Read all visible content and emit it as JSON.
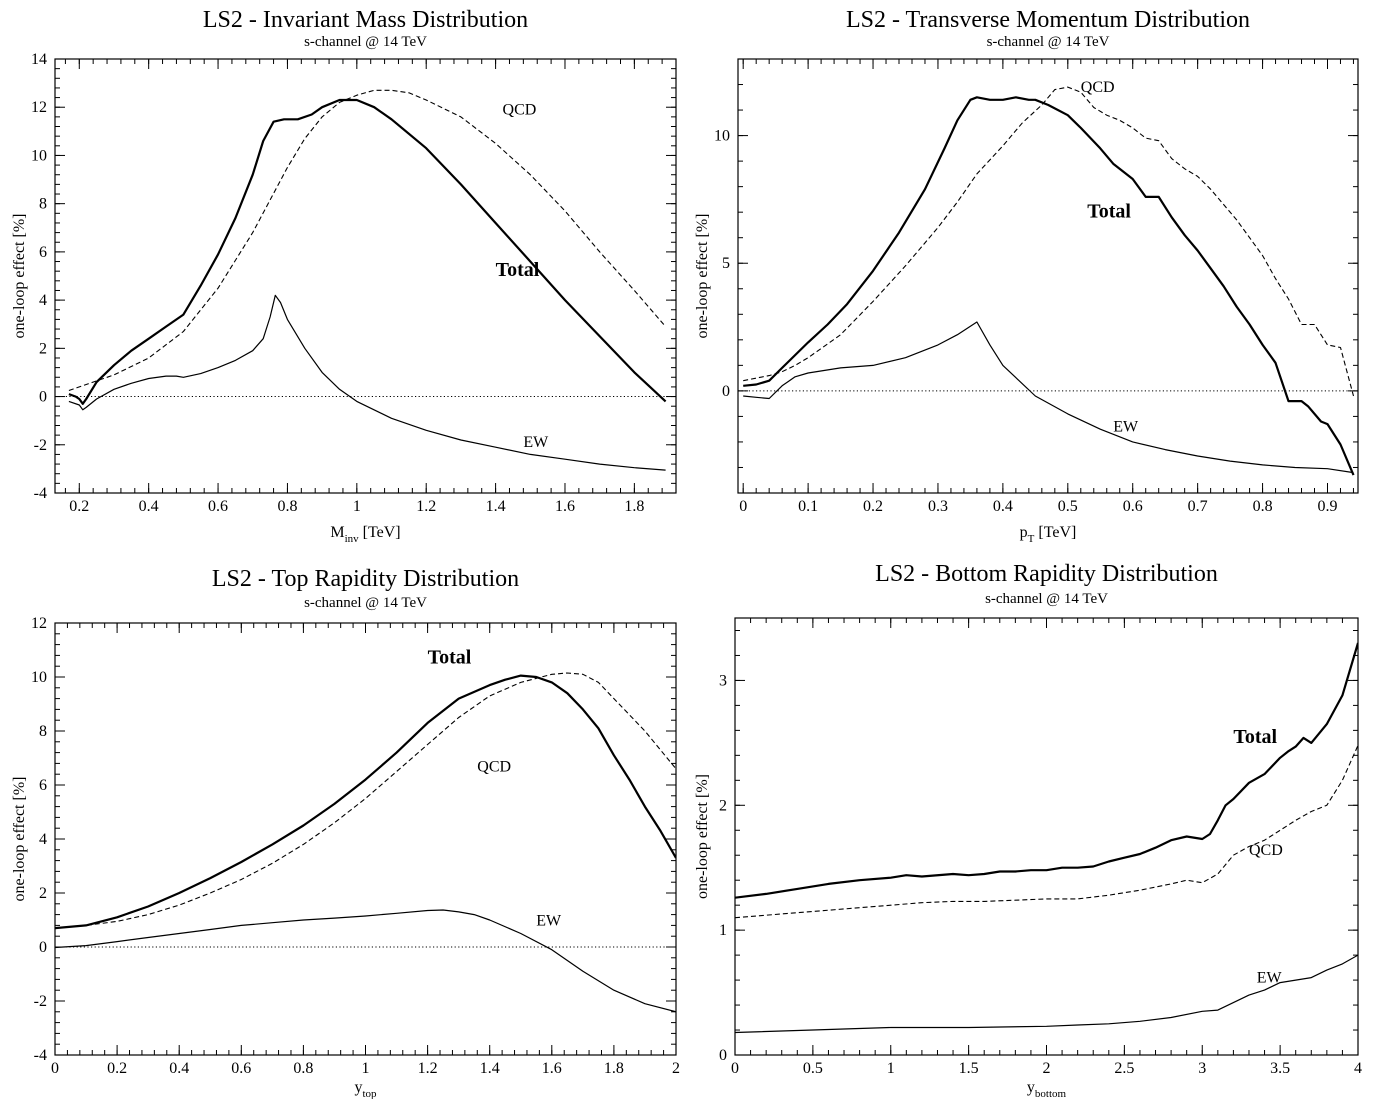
{
  "chart_data": [
    {
      "type": "line",
      "title": "LS2 - Invariant Mass Distribution",
      "subtitle": "s-channel @ 14 TeV",
      "xlabel": "M",
      "xlabel_sub": "inv",
      "xlabel_unit": "[TeV]",
      "ylabel": "one-loop effect [%]",
      "xlim": [
        0.13,
        1.92
      ],
      "ylim": [
        -4,
        14
      ],
      "xticks": [
        0.2,
        0.4,
        0.6,
        0.8,
        1,
        1.2,
        1.4,
        1.6,
        1.8
      ],
      "yticks": [
        -4,
        -2,
        0,
        2,
        4,
        6,
        8,
        10,
        12,
        14
      ],
      "grid": false,
      "zero_line": true,
      "series": [
        {
          "name": "Total",
          "style": "thick",
          "x": [
            0.17,
            0.19,
            0.2,
            0.21,
            0.22,
            0.25,
            0.3,
            0.35,
            0.4,
            0.45,
            0.5,
            0.55,
            0.6,
            0.65,
            0.7,
            0.73,
            0.76,
            0.79,
            0.8,
            0.83,
            0.87,
            0.9,
            0.95,
            1.0,
            1.05,
            1.1,
            1.2,
            1.3,
            1.4,
            1.5,
            1.6,
            1.7,
            1.8,
            1.89
          ],
          "y": [
            0.1,
            0.0,
            -0.1,
            -0.3,
            -0.1,
            0.6,
            1.3,
            1.9,
            2.4,
            2.9,
            3.4,
            4.6,
            5.9,
            7.4,
            9.2,
            10.6,
            11.4,
            11.5,
            11.5,
            11.5,
            11.7,
            12.0,
            12.3,
            12.3,
            12.0,
            11.5,
            10.3,
            8.8,
            7.2,
            5.6,
            4.0,
            2.5,
            1.0,
            -0.2
          ]
        },
        {
          "name": "QCD",
          "style": "dashed",
          "x": [
            0.17,
            0.2,
            0.22,
            0.3,
            0.4,
            0.5,
            0.6,
            0.7,
            0.8,
            0.85,
            0.9,
            0.95,
            1.0,
            1.05,
            1.1,
            1.15,
            1.2,
            1.3,
            1.4,
            1.5,
            1.6,
            1.7,
            1.8,
            1.89
          ],
          "y": [
            0.25,
            0.4,
            0.5,
            0.9,
            1.6,
            2.7,
            4.5,
            6.8,
            9.5,
            10.7,
            11.6,
            12.2,
            12.5,
            12.7,
            12.7,
            12.6,
            12.3,
            11.6,
            10.5,
            9.2,
            7.7,
            6.0,
            4.4,
            2.9
          ]
        },
        {
          "name": "EW",
          "style": "thin",
          "x": [
            0.17,
            0.2,
            0.21,
            0.22,
            0.25,
            0.3,
            0.35,
            0.4,
            0.45,
            0.48,
            0.5,
            0.55,
            0.6,
            0.65,
            0.7,
            0.73,
            0.75,
            0.765,
            0.78,
            0.8,
            0.85,
            0.9,
            0.95,
            1.0,
            1.1,
            1.2,
            1.3,
            1.4,
            1.5,
            1.6,
            1.7,
            1.8,
            1.89
          ],
          "y": [
            -0.2,
            -0.35,
            -0.55,
            -0.45,
            -0.1,
            0.3,
            0.55,
            0.75,
            0.85,
            0.85,
            0.8,
            0.95,
            1.2,
            1.5,
            1.9,
            2.4,
            3.3,
            4.2,
            3.9,
            3.2,
            2.0,
            1.0,
            0.3,
            -0.2,
            -0.9,
            -1.4,
            -1.8,
            -2.1,
            -2.4,
            -2.6,
            -2.8,
            -2.95,
            -3.05
          ]
        }
      ],
      "annotations": [
        {
          "text": "QCD",
          "x": 1.42,
          "y": 11.7,
          "bold": false
        },
        {
          "text": "Total",
          "x": 1.4,
          "y": 5.0,
          "bold": true
        },
        {
          "text": "EW",
          "x": 1.48,
          "y": -2.1,
          "bold": false
        }
      ]
    },
    {
      "type": "line",
      "title": "LS2 - Transverse Momentum Distribution",
      "subtitle": "s-channel @ 14 TeV",
      "xlabel": "p",
      "xlabel_sub": "T",
      "xlabel_unit": "[TeV]",
      "ylabel": "one-loop effect [%]",
      "xlim": [
        -0.008,
        0.947
      ],
      "ylim": [
        -4,
        13
      ],
      "xticks": [
        0,
        0.1,
        0.2,
        0.3,
        0.4,
        0.5,
        0.6,
        0.7,
        0.8,
        0.9
      ],
      "xtick_labels": [
        "0",
        "0.1",
        "0.2",
        "0.3",
        "0.4",
        "0.5",
        "0.6",
        "0.7",
        "0.8",
        "0.9"
      ],
      "yticks": [
        0,
        5,
        10
      ],
      "grid": false,
      "zero_line": true,
      "series": [
        {
          "name": "Total",
          "style": "thick",
          "x": [
            0,
            0.02,
            0.04,
            0.06,
            0.08,
            0.1,
            0.13,
            0.16,
            0.2,
            0.24,
            0.28,
            0.31,
            0.33,
            0.35,
            0.36,
            0.38,
            0.4,
            0.42,
            0.44,
            0.45,
            0.47,
            0.5,
            0.52,
            0.55,
            0.57,
            0.6,
            0.62,
            0.64,
            0.66,
            0.68,
            0.7,
            0.72,
            0.74,
            0.76,
            0.78,
            0.8,
            0.82,
            0.84,
            0.86,
            0.87,
            0.89,
            0.9,
            0.92,
            0.94
          ],
          "y": [
            0.2,
            0.25,
            0.4,
            0.9,
            1.4,
            1.9,
            2.6,
            3.4,
            4.7,
            6.2,
            7.9,
            9.5,
            10.6,
            11.4,
            11.5,
            11.4,
            11.4,
            11.5,
            11.4,
            11.4,
            11.2,
            10.8,
            10.3,
            9.5,
            8.9,
            8.3,
            7.6,
            7.6,
            6.8,
            6.1,
            5.5,
            4.8,
            4.1,
            3.3,
            2.6,
            1.8,
            1.1,
            -0.4,
            -0.4,
            -0.6,
            -1.2,
            -1.3,
            -2.1,
            -3.3
          ]
        },
        {
          "name": "QCD",
          "style": "dashed",
          "x": [
            0,
            0.02,
            0.04,
            0.06,
            0.08,
            0.1,
            0.15,
            0.2,
            0.25,
            0.3,
            0.33,
            0.36,
            0.4,
            0.43,
            0.46,
            0.48,
            0.5,
            0.52,
            0.54,
            0.56,
            0.58,
            0.6,
            0.62,
            0.64,
            0.66,
            0.68,
            0.7,
            0.72,
            0.74,
            0.76,
            0.78,
            0.8,
            0.82,
            0.84,
            0.86,
            0.88,
            0.9,
            0.92,
            0.94
          ],
          "y": [
            0.4,
            0.5,
            0.6,
            0.75,
            1.0,
            1.3,
            2.2,
            3.5,
            4.9,
            6.4,
            7.4,
            8.5,
            9.6,
            10.5,
            11.2,
            11.8,
            11.9,
            11.7,
            11.1,
            10.8,
            10.6,
            10.3,
            9.9,
            9.8,
            9.1,
            8.7,
            8.4,
            7.9,
            7.3,
            6.7,
            6.0,
            5.3,
            4.4,
            3.6,
            2.6,
            2.6,
            1.8,
            1.7,
            -0.2
          ]
        },
        {
          "name": "EW",
          "style": "thin",
          "x": [
            0,
            0.02,
            0.04,
            0.06,
            0.08,
            0.1,
            0.15,
            0.2,
            0.25,
            0.3,
            0.33,
            0.36,
            0.38,
            0.4,
            0.45,
            0.5,
            0.55,
            0.6,
            0.65,
            0.7,
            0.75,
            0.8,
            0.85,
            0.9,
            0.94
          ],
          "y": [
            -0.2,
            -0.25,
            -0.3,
            0.2,
            0.55,
            0.7,
            0.9,
            1.0,
            1.3,
            1.8,
            2.2,
            2.7,
            1.8,
            1.0,
            -0.2,
            -0.9,
            -1.5,
            -2.0,
            -2.3,
            -2.55,
            -2.75,
            -2.9,
            -3.0,
            -3.05,
            -3.2
          ]
        }
      ],
      "annotations": [
        {
          "text": "QCD",
          "x": 0.52,
          "y": 11.7,
          "bold": false
        },
        {
          "text": "Total",
          "x": 0.53,
          "y": 6.8,
          "bold": true
        },
        {
          "text": "EW",
          "x": 0.57,
          "y": -1.6,
          "bold": false
        }
      ]
    },
    {
      "type": "line",
      "title": "LS2 - Top Rapidity Distribution",
      "subtitle": "s-channel @ 14 TeV",
      "xlabel": "y",
      "xlabel_sub": "top",
      "xlabel_unit": "",
      "ylabel": "one-loop effect [%]",
      "xlim": [
        0,
        2
      ],
      "ylim": [
        -4,
        12
      ],
      "xticks": [
        0,
        0.2,
        0.4,
        0.6,
        0.8,
        1,
        1.2,
        1.4,
        1.6,
        1.8,
        2
      ],
      "yticks": [
        -4,
        -2,
        0,
        2,
        4,
        6,
        8,
        10,
        12
      ],
      "grid": false,
      "zero_line": true,
      "series": [
        {
          "name": "Total",
          "style": "thick",
          "x": [
            0,
            0.1,
            0.2,
            0.3,
            0.4,
            0.5,
            0.6,
            0.7,
            0.8,
            0.9,
            1.0,
            1.1,
            1.2,
            1.3,
            1.4,
            1.45,
            1.5,
            1.55,
            1.6,
            1.65,
            1.7,
            1.75,
            1.8,
            1.85,
            1.9,
            1.95,
            2.0
          ],
          "y": [
            0.7,
            0.8,
            1.1,
            1.5,
            2.0,
            2.55,
            3.15,
            3.8,
            4.5,
            5.3,
            6.2,
            7.2,
            8.3,
            9.2,
            9.7,
            9.9,
            10.05,
            10.0,
            9.8,
            9.4,
            8.8,
            8.1,
            7.1,
            6.2,
            5.2,
            4.3,
            3.3
          ]
        },
        {
          "name": "QCD",
          "style": "dashed",
          "x": [
            0,
            0.1,
            0.2,
            0.3,
            0.4,
            0.5,
            0.6,
            0.7,
            0.8,
            0.9,
            1.0,
            1.1,
            1.2,
            1.3,
            1.4,
            1.5,
            1.6,
            1.65,
            1.7,
            1.75,
            1.8,
            1.85,
            1.9,
            2.0
          ],
          "y": [
            0.7,
            0.8,
            0.95,
            1.2,
            1.55,
            2.0,
            2.5,
            3.1,
            3.8,
            4.6,
            5.5,
            6.5,
            7.5,
            8.5,
            9.3,
            9.8,
            10.1,
            10.15,
            10.1,
            9.8,
            9.2,
            8.6,
            8.0,
            6.6
          ]
        },
        {
          "name": "EW",
          "style": "thin",
          "x": [
            0,
            0.1,
            0.2,
            0.3,
            0.4,
            0.5,
            0.6,
            0.7,
            0.8,
            0.9,
            1.0,
            1.1,
            1.2,
            1.25,
            1.3,
            1.35,
            1.4,
            1.5,
            1.6,
            1.7,
            1.8,
            1.9,
            2.0
          ],
          "y": [
            -0.02,
            0.05,
            0.2,
            0.35,
            0.5,
            0.65,
            0.8,
            0.9,
            1.0,
            1.07,
            1.15,
            1.25,
            1.35,
            1.37,
            1.3,
            1.2,
            1.0,
            0.5,
            -0.1,
            -0.9,
            -1.6,
            -2.1,
            -2.4
          ]
        }
      ],
      "annotations": [
        {
          "text": "Total",
          "x": 1.2,
          "y": 10.5,
          "bold": true
        },
        {
          "text": "QCD",
          "x": 1.36,
          "y": 6.5,
          "bold": false
        },
        {
          "text": "EW",
          "x": 1.55,
          "y": 0.8,
          "bold": false
        }
      ]
    },
    {
      "type": "line",
      "title": "LS2 - Bottom Rapidity Distribution",
      "subtitle": "s-channel @ 14 TeV",
      "xlabel": "y",
      "xlabel_sub": "bottom",
      "xlabel_unit": "",
      "ylabel": "one-loop effect [%]",
      "xlim": [
        0,
        4
      ],
      "ylim": [
        0,
        3.5
      ],
      "xticks": [
        0,
        0.5,
        1,
        1.5,
        2,
        2.5,
        3,
        3.5,
        4
      ],
      "yticks": [
        0,
        1,
        2,
        3
      ],
      "grid": false,
      "zero_line": false,
      "series": [
        {
          "name": "Total",
          "style": "thick",
          "x": [
            0,
            0.2,
            0.4,
            0.6,
            0.8,
            1.0,
            1.1,
            1.2,
            1.4,
            1.5,
            1.6,
            1.7,
            1.8,
            1.9,
            2.0,
            2.1,
            2.2,
            2.3,
            2.4,
            2.5,
            2.6,
            2.7,
            2.8,
            2.9,
            3.0,
            3.05,
            3.1,
            3.15,
            3.2,
            3.3,
            3.4,
            3.5,
            3.55,
            3.6,
            3.65,
            3.7,
            3.8,
            3.9,
            4.0
          ],
          "y": [
            1.26,
            1.29,
            1.33,
            1.37,
            1.4,
            1.42,
            1.44,
            1.43,
            1.45,
            1.44,
            1.45,
            1.47,
            1.47,
            1.48,
            1.48,
            1.5,
            1.5,
            1.51,
            1.55,
            1.58,
            1.61,
            1.66,
            1.72,
            1.75,
            1.73,
            1.77,
            1.88,
            2.0,
            2.05,
            2.18,
            2.25,
            2.38,
            2.43,
            2.47,
            2.54,
            2.5,
            2.65,
            2.88,
            3.3
          ]
        },
        {
          "name": "QCD",
          "style": "dashed",
          "x": [
            0,
            0.2,
            0.4,
            0.6,
            0.8,
            1.0,
            1.2,
            1.4,
            1.6,
            1.8,
            2.0,
            2.2,
            2.4,
            2.6,
            2.8,
            2.9,
            3.0,
            3.1,
            3.2,
            3.3,
            3.4,
            3.5,
            3.6,
            3.7,
            3.8,
            3.9,
            4.0
          ],
          "y": [
            1.1,
            1.12,
            1.14,
            1.16,
            1.18,
            1.2,
            1.22,
            1.23,
            1.23,
            1.24,
            1.25,
            1.25,
            1.28,
            1.32,
            1.37,
            1.4,
            1.38,
            1.45,
            1.6,
            1.67,
            1.72,
            1.8,
            1.88,
            1.95,
            2.0,
            2.2,
            2.48
          ]
        },
        {
          "name": "EW",
          "style": "thin",
          "x": [
            0,
            0.5,
            1.0,
            1.5,
            2.0,
            2.2,
            2.4,
            2.6,
            2.8,
            3.0,
            3.1,
            3.2,
            3.3,
            3.4,
            3.5,
            3.6,
            3.7,
            3.8,
            3.9,
            4.0
          ],
          "y": [
            0.18,
            0.2,
            0.22,
            0.22,
            0.23,
            0.24,
            0.25,
            0.27,
            0.3,
            0.35,
            0.36,
            0.42,
            0.48,
            0.52,
            0.58,
            0.6,
            0.62,
            0.68,
            0.73,
            0.8
          ]
        }
      ],
      "annotations": [
        {
          "text": "Total",
          "x": 3.2,
          "y": 2.5,
          "bold": true
        },
        {
          "text": "QCD",
          "x": 3.3,
          "y": 1.6,
          "bold": false
        },
        {
          "text": "EW",
          "x": 3.35,
          "y": 0.58,
          "bold": false
        }
      ]
    }
  ]
}
